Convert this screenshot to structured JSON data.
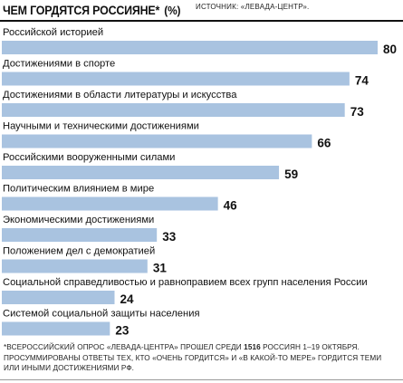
{
  "header": {
    "title": "ЧЕМ ГОРДЯТСЯ РОССИЯНЕ*",
    "unit": "(%)",
    "source": "ИСТОЧНИК: «ЛЕВАДА-ЦЕНТР»."
  },
  "chart_data": {
    "type": "bar",
    "orientation": "horizontal",
    "title": "ЧЕМ ГОРДЯТСЯ РОССИЯНЕ* (%)",
    "categories": [
      "Российской историей",
      "Достижениями в спорте",
      "Достижениями в области литературы и искусства",
      "Научными и техническими достижениями",
      "Российскими вооруженными силами",
      "Политическим влиянием в мире",
      "Экономическими достижениями",
      "Положением дел с демократией",
      "Социальной справедливостью и равноправием всех групп населения России",
      "Системой социальной защиты населения"
    ],
    "values": [
      80,
      74,
      73,
      66,
      59,
      46,
      33,
      31,
      24,
      23
    ],
    "value_labels": [
      "80",
      "74",
      "73",
      "66",
      "59",
      "46",
      "33",
      "31",
      "24",
      "23"
    ],
    "xlim": [
      0,
      80
    ],
    "grid": false,
    "bar_color": "#a9c3e0"
  },
  "footnote": {
    "part1": "*Всероссийский опрос «Левада-Центра» прошел среди ",
    "count": "1516",
    "part2": " россиян 1–19 октября. Просуммированы ответы тех, кто «очень гордится» и «в какой-то мере» гордится теми или иными достижениями РФ."
  }
}
